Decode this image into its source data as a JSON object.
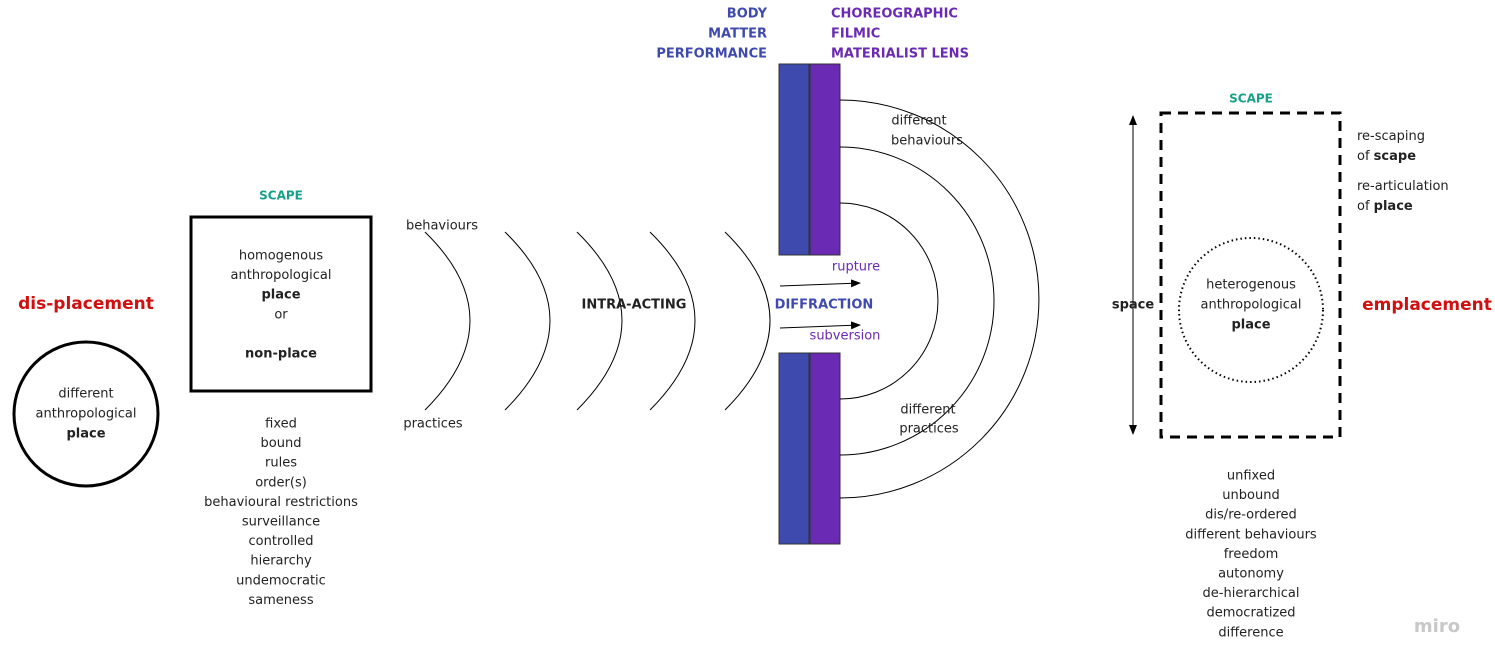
{
  "left": {
    "title": "dis-placement",
    "circle": {
      "lines": [
        "different",
        "anthropological"
      ],
      "bold": "place"
    }
  },
  "scape_left": {
    "label": "SCAPE",
    "box": {
      "lines": [
        "homogenous",
        "anthropological"
      ],
      "bold": "place",
      "or": "or",
      "alt": "non-place"
    },
    "list": [
      "fixed",
      "bound",
      "rules",
      "order(s)",
      "behavioural restrictions",
      "surveillance",
      "controlled",
      "hierarchy",
      "undemocratic",
      "sameness"
    ]
  },
  "waves": {
    "top": "behaviours",
    "bottom": "practices",
    "center": "INTRA-ACTING"
  },
  "barrier": {
    "body": [
      "BODY",
      "MATTER",
      "PERFORMANCE"
    ],
    "lens": [
      "CHOREOGRAPHIC",
      "FILMIC",
      "MATERIALIST LENS"
    ],
    "center": "DIFFRACTION",
    "rupture": "rupture",
    "subversion": "subversion",
    "diff_behaviours": [
      "different",
      "behaviours"
    ],
    "diff_practices": [
      "different",
      "practices"
    ]
  },
  "right": {
    "label": "SCAPE",
    "space": "space",
    "circle": {
      "lines": [
        "heterogenous",
        "anthropological"
      ],
      "bold": "place"
    },
    "notes": [
      [
        "re-scaping"
      ],
      [
        "of ",
        "scape"
      ],
      [
        "re-articulation"
      ],
      [
        "of ",
        "place"
      ]
    ],
    "title": "emplacement",
    "list": [
      "unfixed",
      "unbound",
      "dis/re-ordered",
      "different behaviours",
      "freedom",
      "autonomy",
      "de-hierarchical",
      "democratized",
      "difference"
    ]
  },
  "brand": "miro"
}
